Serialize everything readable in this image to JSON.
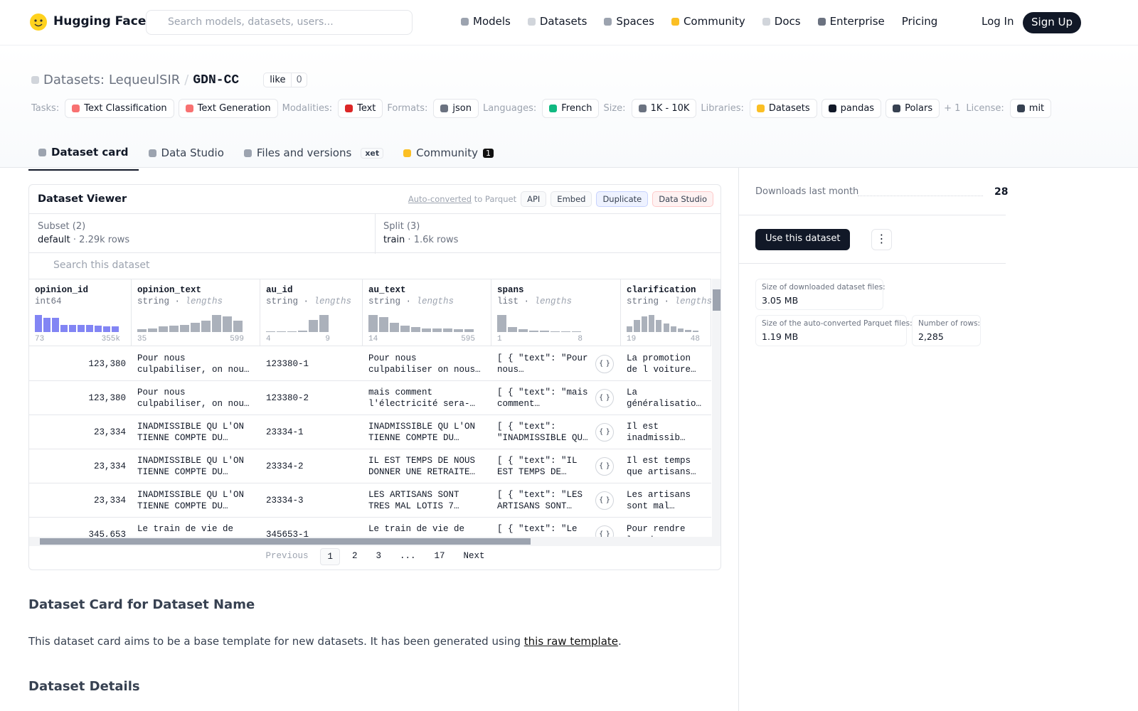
{
  "header": {
    "logo": "Hugging Face",
    "search_placeholder": "Search models, datasets, users...",
    "nav": [
      "Models",
      "Datasets",
      "Spaces",
      "Community",
      "Docs",
      "Enterprise",
      "Pricing"
    ],
    "login": "Log In",
    "signup": "Sign Up"
  },
  "dataset": {
    "prefix": "Datasets:",
    "owner": "LequeulSIR",
    "separator": "/",
    "name": "GDN-CC",
    "like": "like",
    "likes": 0,
    "tag_groups": [
      {
        "label": "Tasks:",
        "tags": [
          "Text Classification",
          "Text Generation"
        ]
      },
      {
        "label": "Modalities:",
        "tags": [
          "Text"
        ]
      },
      {
        "label": "Formats:",
        "tags": [
          "json"
        ]
      },
      {
        "label": "Languages:",
        "tags": [
          "French"
        ]
      },
      {
        "label": "Size:",
        "tags": [
          "1K - 10K"
        ]
      },
      {
        "label": "Libraries:",
        "tags": [
          "Datasets",
          "pandas",
          "Polars"
        ],
        "more": "+ 1"
      },
      {
        "label": "License:",
        "tags": [
          "mit"
        ]
      }
    ]
  },
  "tabs": [
    {
      "label": "Dataset card"
    },
    {
      "label": "Data Studio"
    },
    {
      "label": "Files and versions",
      "badge": "xet"
    },
    {
      "label": "Community",
      "badge": "1"
    }
  ],
  "viewer": {
    "title": "Dataset Viewer",
    "auto_link": "Auto-converted",
    "auto_rest": "to Parquet",
    "buttons": [
      "API",
      "Embed",
      "Duplicate",
      "Data Studio"
    ],
    "subset_label": "Subset (2)",
    "subset_value": "default",
    "subset_rows": "2.29k rows",
    "split_label": "Split (3)",
    "split_value": "train",
    "split_rows": "1.6k rows",
    "search_placeholder": "Search this dataset",
    "columns": [
      {
        "name": "opinion_id",
        "type": "int64",
        "min": "73",
        "max": "355k",
        "hist": [
          24,
          20,
          20,
          10,
          10,
          10,
          10,
          9,
          8,
          8
        ]
      },
      {
        "name": "opinion_text",
        "type": "string",
        "stat": "lengths",
        "min": "35",
        "max": "599",
        "hist": [
          4,
          5,
          8,
          9,
          10,
          13,
          16,
          24,
          22,
          16
        ]
      },
      {
        "name": "au_id",
        "type": "string",
        "stat": "lengths",
        "min": "4",
        "max": "9",
        "hist": [
          1,
          1,
          1,
          2,
          17,
          24
        ]
      },
      {
        "name": "au_text",
        "type": "string",
        "stat": "lengths",
        "min": "14",
        "max": "595",
        "hist": [
          24,
          21,
          13,
          9,
          7,
          5,
          5,
          5,
          4,
          4
        ]
      },
      {
        "name": "spans",
        "type": "list",
        "stat": "lengths",
        "min": "1",
        "max": "8",
        "hist": [
          24,
          7,
          4,
          2,
          2,
          1,
          1,
          1
        ]
      },
      {
        "name": "clarification",
        "type": "string",
        "stat": "lengths",
        "min": "19",
        "max": "48",
        "hist": [
          8,
          17,
          22,
          24,
          17,
          12,
          8,
          5,
          3,
          2
        ]
      }
    ],
    "rows": [
      [
        "123,380",
        "Pour nous culpabiliser, on nous dit que la…",
        "123380-1",
        "Pour nous culpabiliser on nous dit que la…",
        "[ { \"text\": \"Pour nous…",
        "La promotion de l voiture électriqu"
      ],
      [
        "123,380",
        "Pour nous culpabiliser, on nous dit que la…",
        "123380-2",
        "mais comment l'électricité sera-t-…",
        "[ { \"text\": \"mais comment…",
        "La généralisation voiture électriqu"
      ],
      [
        "23,334",
        "INADMISSIBLE QU L'ON TIENNE COMPTE DU REVENU…",
        "23334-1",
        "INADMISSIBLE QU L'ON TIENNE COMPTE DU REVENU…",
        "[ { \"text\": \"INADMISSIBLE QU…",
        "Il est inadmissib relier la CSG au"
      ],
      [
        "23,334",
        "INADMISSIBLE QU L'ON TIENNE COMPTE DU REVENU…",
        "23334-2",
        "IL EST TEMPS DE NOUS DONNER UNE RETRAITE AU…",
        "[ { \"text\": \"IL EST TEMPS DE NOUS…",
        "Il est temps que artisans reçoiven"
      ],
      [
        "23,334",
        "INADMISSIBLE QU L'ON TIENNE COMPTE DU REVENU…",
        "23334-3",
        "LES ARTISANS SONT TRES MAL LOTIS 7 JOURS DE…",
        "[ { \"text\": \"LES ARTISANS SONT TRE…",
        "Les artisans sont mal lotis, notamm"
      ],
      [
        "345,653",
        "Le train de vie de",
        "345653-1",
        "Le train de vie de",
        "[ { \"text\": \"Le",
        "Pour rendre les d"
      ]
    ],
    "pagination": [
      "Previous",
      "1",
      "2",
      "3",
      "...",
      "17",
      "Next"
    ]
  },
  "sidebar": {
    "downloads_label": "Downloads last month",
    "downloads": 28,
    "use_button": "Use this dataset",
    "stats": [
      {
        "label": "Size of downloaded dataset files:",
        "value": "3.05 MB"
      },
      {
        "label": "Size of the auto-converted Parquet files:",
        "value": "1.19 MB"
      },
      {
        "label": "Number of rows:",
        "value": "2,285"
      }
    ]
  },
  "card": {
    "title": "Dataset Card for Dataset Name",
    "text": "This dataset card aims to be a base template for new datasets. It has been generated using",
    "link": "this raw template",
    "end": ".",
    "subtitle": "Dataset Details"
  }
}
